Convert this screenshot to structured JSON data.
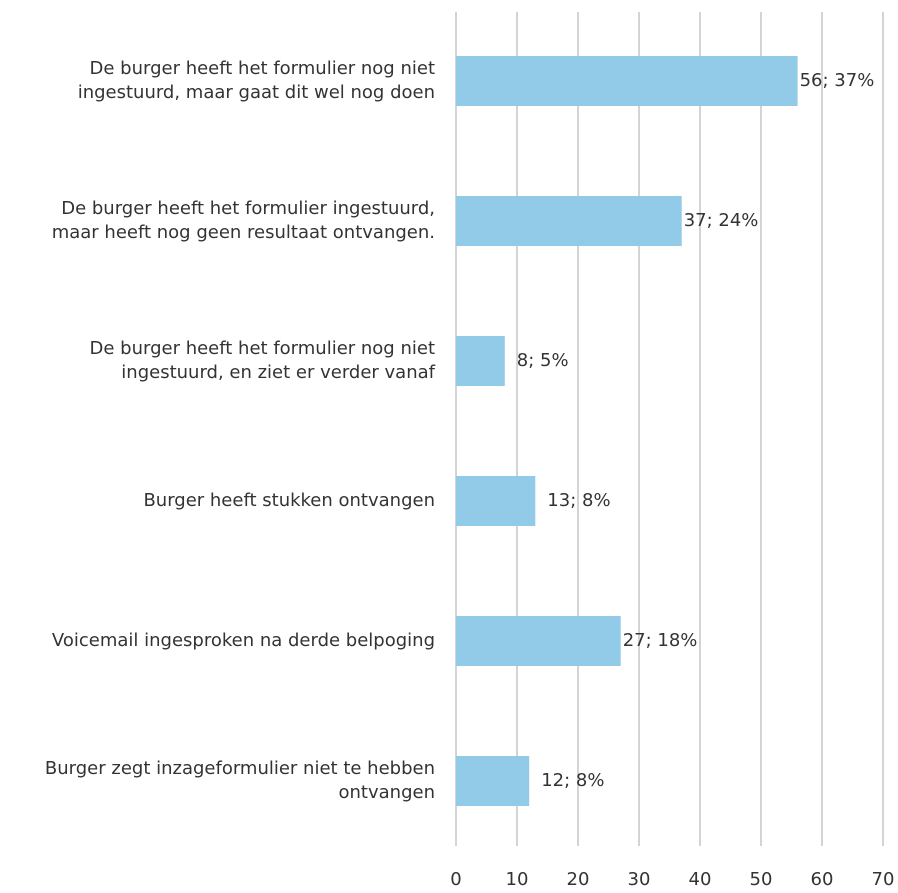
{
  "chart_data": {
    "type": "barh",
    "categories": [
      [
        "De burger heeft het formulier nog niet",
        "ingestuurd, maar gaat dit wel nog doen"
      ],
      [
        "De burger heeft het formulier ingestuurd,",
        "maar heeft nog geen resultaat ontvangen."
      ],
      [
        "De burger heeft het formulier nog niet",
        "ingestuurd, en ziet er verder vanaf"
      ],
      [
        "Burger heeft stukken ontvangen"
      ],
      [
        "Voicemail ingesproken na derde belpoging"
      ],
      [
        "Burger zegt inzageformulier niet te hebben",
        "ontvangen"
      ]
    ],
    "values": [
      56,
      37,
      8,
      13,
      27,
      12
    ],
    "value_labels": [
      "56; 37%",
      "37; 24%",
      "8; 5%",
      "13; 8%",
      "27; 18%",
      "12; 8%"
    ],
    "color": "#92cbe7",
    "xlim": [
      0,
      70
    ],
    "xticks": [
      0,
      10,
      20,
      30,
      40,
      50,
      60,
      70
    ],
    "grid": true
  }
}
